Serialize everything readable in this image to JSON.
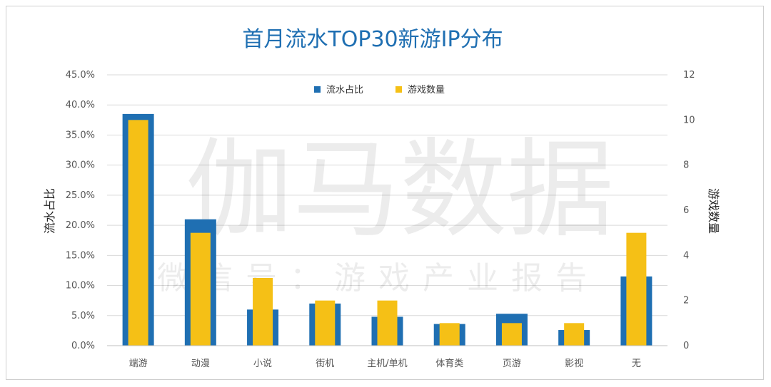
{
  "chart_data": {
    "type": "bar",
    "title": "首月流水TOP30新游IP分布",
    "categories": [
      "端游",
      "动漫",
      "小说",
      "街机",
      "主机/单机",
      "体育类",
      "页游",
      "影视",
      "无"
    ],
    "series": [
      {
        "name": "流水占比",
        "axis": "left",
        "color": "#1f6fb2",
        "values": [
          38.5,
          21.0,
          6.0,
          7.0,
          4.8,
          3.6,
          5.3,
          2.6,
          11.5
        ]
      },
      {
        "name": "游戏数量",
        "axis": "right",
        "color": "#f5c016",
        "values": [
          10,
          5,
          3,
          2,
          2,
          1,
          1,
          1,
          5
        ]
      }
    ],
    "ylabel": "流水占比",
    "y2label": "游戏数量",
    "ylim": [
      0,
      45
    ],
    "y2lim": [
      0,
      12
    ],
    "yticks": [
      "0.0%",
      "5.0%",
      "10.0%",
      "15.0%",
      "20.0%",
      "25.0%",
      "30.0%",
      "35.0%",
      "40.0%",
      "45.0%"
    ],
    "y2ticks": [
      "0",
      "2",
      "4",
      "6",
      "8",
      "10",
      "12"
    ],
    "grid": true,
    "legend": "top-center"
  },
  "watermark": {
    "main": "伽马数据",
    "sub": "微信号：游戏产业报告"
  }
}
